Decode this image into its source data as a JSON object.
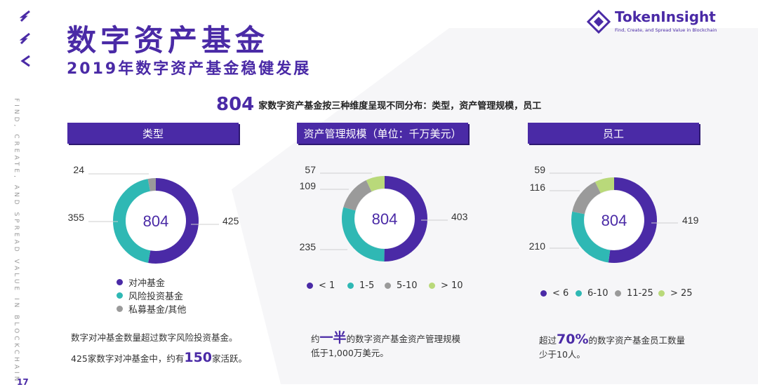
{
  "header": {
    "title": "数字资产基金",
    "subtitle": "2019年数字资产基金稳健发展"
  },
  "logo": {
    "name": "TokenInsight",
    "tagline": "Find, Create, and Spread Value in Blockchain",
    "icon": "token-insight-diamond-icon"
  },
  "side_text": "FIND, CREATE, AND SPREAD VALUE IN BLOCKCHAIN",
  "page_number": "17",
  "headline": {
    "number": "804",
    "text": "家数字资产基金按三种维度呈现不同分布：类型，资产管理规模，员工"
  },
  "colors": {
    "purple": "#4a2aa6",
    "teal": "#2fb8b4",
    "gray": "#9a9a9a",
    "green": "#b9d97a"
  },
  "chart_data": [
    {
      "type": "pie",
      "variant": "donut",
      "title": "类型",
      "center_label": "804",
      "categories": [
        "对冲基金",
        "风险投资基金",
        "私募基金/其他"
      ],
      "values": [
        425,
        355,
        24
      ],
      "value_labels": [
        "425",
        "355",
        "24"
      ],
      "colors": [
        "#4a2aa6",
        "#2fb8b4",
        "#9a9a9a"
      ]
    },
    {
      "type": "pie",
      "variant": "donut",
      "title": "资产管理规模（单位：千万美元）",
      "center_label": "804",
      "categories": [
        "< 1",
        "1-5",
        "5-10",
        "> 10"
      ],
      "values": [
        403,
        235,
        109,
        57
      ],
      "value_labels": [
        "403",
        "235",
        "109",
        "57"
      ],
      "colors": [
        "#4a2aa6",
        "#2fb8b4",
        "#9a9a9a",
        "#b9d97a"
      ]
    },
    {
      "type": "pie",
      "variant": "donut",
      "title": "员工",
      "center_label": "804",
      "categories": [
        "< 6",
        "6-10",
        "11-25",
        "> 25"
      ],
      "values": [
        419,
        210,
        116,
        59
      ],
      "value_labels": [
        "419",
        "210",
        "116",
        "59"
      ],
      "colors": [
        "#4a2aa6",
        "#2fb8b4",
        "#9a9a9a",
        "#b9d97a"
      ]
    }
  ],
  "notes": {
    "type": {
      "line1": "数字对冲基金数量超过数字风险投资基金。",
      "line2_pre": "425家数字对冲基金中，约有",
      "line2_num": "150",
      "line2_post": "家活跃。"
    },
    "aum": {
      "line1_pre": "约",
      "line1_num": "一半",
      "line1_post": "的数字资产基金资产管理规模",
      "line2": "低于1,000万美元。"
    },
    "staff": {
      "line1_pre": "超过",
      "line1_num": "70%",
      "line1_post": "的数字资产基金员工数量",
      "line2": "少于10人。"
    }
  }
}
